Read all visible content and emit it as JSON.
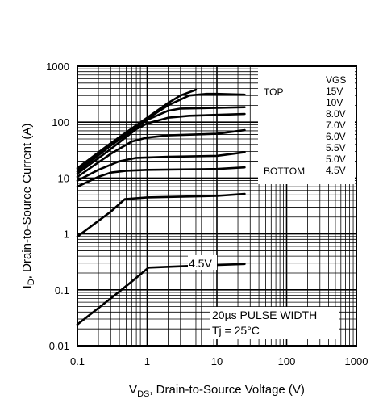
{
  "chart_data": {
    "type": "line",
    "x_scale": "log",
    "y_scale": "log",
    "xlim": [
      0.1,
      1000
    ],
    "ylim": [
      0.01,
      1000
    ],
    "grid": true,
    "x_ticks": [
      "0.1",
      "1",
      "10",
      "100",
      "1000"
    ],
    "y_ticks": [
      "0.01",
      "0.1",
      "1",
      "10",
      "100",
      "1000"
    ],
    "xlabel": {
      "main": "V",
      "sub": "DS",
      "rest": ", Drain-to-Source Voltage (V)"
    },
    "ylabel": {
      "main": "I",
      "sub": "D",
      "rest": ", Drain-to-Source Current (A)"
    },
    "legend": {
      "placement": "top-right",
      "header": "VGS",
      "top_label": "TOP",
      "bottom_label": "BOTTOM",
      "entries": [
        "15V",
        "10V",
        "8.0V",
        "7.0V",
        "6.0V",
        "5.5V",
        "5.0V",
        "4.5V"
      ]
    },
    "annotations": {
      "pulse_width": "20µs PULSE WIDTH",
      "temperature": "Tj = 25°C",
      "curve_label": "4.5V"
    },
    "series": [
      {
        "label_key": "15V",
        "points": [
          [
            0.1,
            15
          ],
          [
            0.3,
            42
          ],
          [
            1,
            120
          ],
          [
            2,
            220
          ],
          [
            3,
            300
          ],
          [
            5,
            380
          ]
        ]
      },
      {
        "label_key": "10V",
        "points": [
          [
            0.1,
            14
          ],
          [
            0.3,
            40
          ],
          [
            1,
            115
          ],
          [
            2,
            200
          ],
          [
            4,
            300
          ],
          [
            7,
            320
          ],
          [
            10,
            320
          ],
          [
            25,
            310
          ]
        ]
      },
      {
        "label_key": "8.0V",
        "points": [
          [
            0.1,
            13
          ],
          [
            0.3,
            38
          ],
          [
            1,
            110
          ],
          [
            2,
            160
          ],
          [
            3,
            175
          ],
          [
            10,
            180
          ],
          [
            25,
            185
          ]
        ]
      },
      {
        "label_key": "7.0V",
        "points": [
          [
            0.1,
            12
          ],
          [
            0.3,
            33
          ],
          [
            0.7,
            75
          ],
          [
            1,
            95
          ],
          [
            2,
            120
          ],
          [
            4,
            130
          ],
          [
            10,
            135
          ],
          [
            25,
            140
          ]
        ]
      },
      {
        "label_key": "6.0V",
        "points": [
          [
            0.1,
            10.5
          ],
          [
            0.3,
            27
          ],
          [
            0.6,
            45
          ],
          [
            1,
            53
          ],
          [
            2,
            58
          ],
          [
            10,
            62
          ],
          [
            25,
            72
          ]
        ]
      },
      {
        "label_key": "5.5V",
        "points": [
          [
            0.1,
            9
          ],
          [
            0.2,
            14
          ],
          [
            0.4,
            20
          ],
          [
            0.7,
            23
          ],
          [
            2,
            24
          ],
          [
            10,
            25
          ],
          [
            25,
            29
          ]
        ]
      },
      {
        "label_key": "5.0V",
        "points": [
          [
            0.1,
            7
          ],
          [
            0.2,
            10.5
          ],
          [
            0.3,
            12.5
          ],
          [
            0.5,
            13.5
          ],
          [
            1,
            14
          ],
          [
            10,
            14.5
          ],
          [
            25,
            15.5
          ]
        ]
      },
      {
        "label_key": "4.5V",
        "points": [
          [
            0.1,
            0.9
          ],
          [
            0.3,
            2.5
          ],
          [
            0.48,
            4.2
          ],
          [
            1,
            4.5
          ],
          [
            5,
            4.7
          ],
          [
            10,
            4.8
          ],
          [
            25,
            5.2
          ]
        ]
      },
      {
        "label_key": "4.5V-lowest",
        "points": [
          [
            0.1,
            0.024
          ],
          [
            0.3,
            0.07
          ],
          [
            0.6,
            0.14
          ],
          [
            1.05,
            0.25
          ],
          [
            5,
            0.27
          ],
          [
            25,
            0.29
          ]
        ]
      }
    ]
  }
}
